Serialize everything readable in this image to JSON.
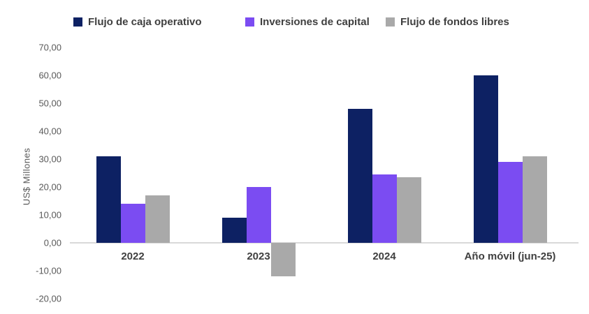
{
  "legend": {
    "items": [
      {
        "label": "Flujo de caja operativo",
        "color": "#0d2163"
      },
      {
        "label": "Inversiones de capital",
        "color": "#7b4cf2"
      },
      {
        "label": "Flujo de fondos libres",
        "color": "#a9a9a9"
      }
    ]
  },
  "axes": {
    "y_title": "US$ Millones"
  },
  "chart_data": {
    "type": "bar",
    "title": "",
    "categories": [
      "2022",
      "2023",
      "2024",
      "Año móvil (jun-25)"
    ],
    "series": [
      {
        "name": "Flujo de caja operativo",
        "color": "#0d2163",
        "values": [
          31,
          9,
          48,
          60
        ]
      },
      {
        "name": "Inversiones de capital",
        "color": "#7b4cf2",
        "values": [
          14,
          20,
          24.5,
          29
        ]
      },
      {
        "name": "Flujo de fondos libres",
        "color": "#a9a9a9",
        "values": [
          17,
          -12,
          23.5,
          31
        ]
      }
    ],
    "xlabel": "",
    "ylabel": "US$ Millones",
    "ylim": [
      -20,
      70
    ],
    "ytick_step": 10,
    "ytick_labels": [
      "70,00",
      "60,00",
      "50,00",
      "40,00",
      "30,00",
      "20,00",
      "10,00",
      "0,00",
      "-10,00",
      "-20,00"
    ],
    "grid": false,
    "legend_position": "top",
    "colors": {
      "accent_navy": "#0d2163",
      "accent_purple": "#7b4cf2",
      "accent_gray": "#a9a9a9",
      "axis_line": "#d9d9d9"
    }
  }
}
